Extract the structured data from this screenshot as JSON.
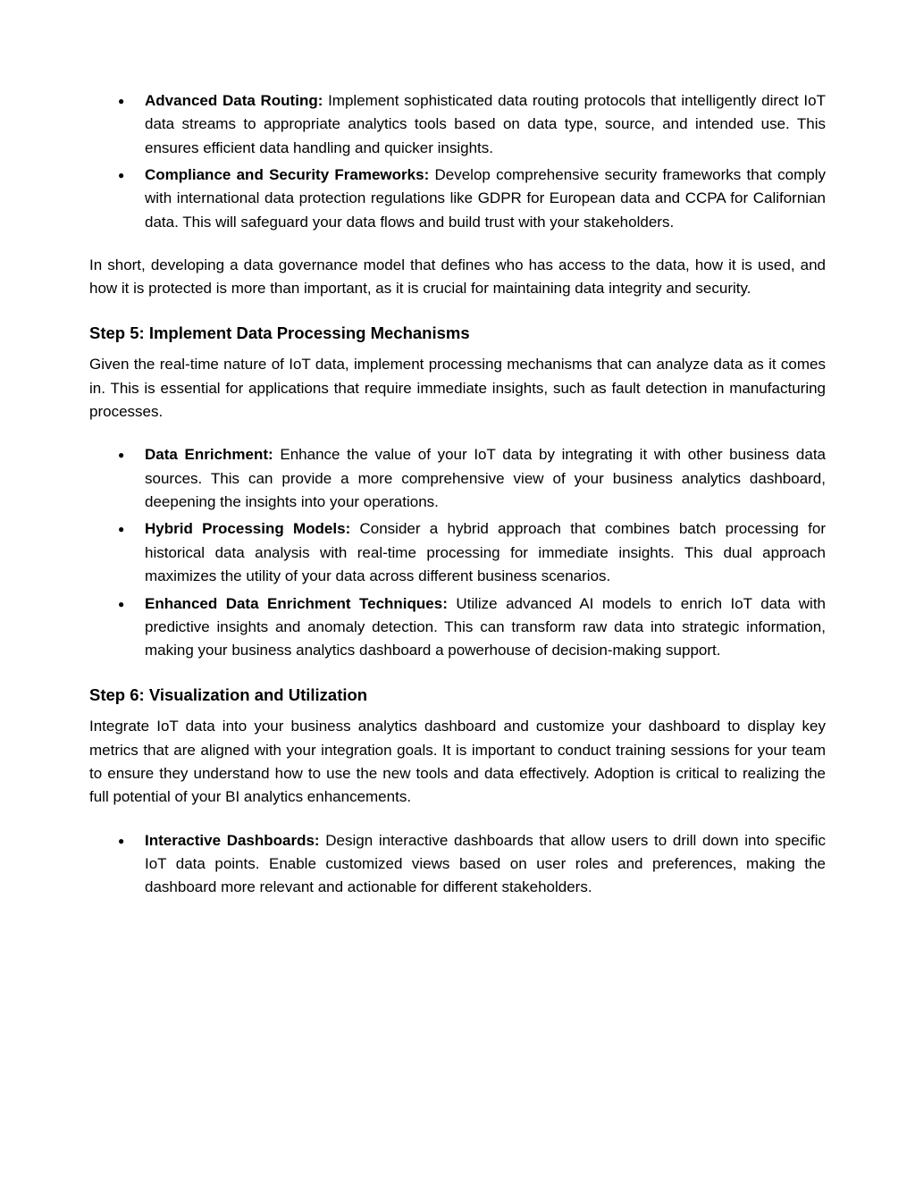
{
  "list1": {
    "items": [
      {
        "bold": "Advanced Data Routing:",
        "text": " Implement sophisticated data routing protocols that intelligently direct IoT data streams to appropriate analytics tools based on data type, source, and intended use. This ensures efficient data handling and quicker insights."
      },
      {
        "bold": "Compliance and Security Frameworks:",
        "text": " Develop comprehensive security frameworks that comply with international data protection regulations like GDPR for European data and CCPA for Californian data. This will safeguard your data flows and build trust with your stakeholders."
      }
    ]
  },
  "para1": "In short, developing a data governance model that defines who has access to the data, how it is used, and how it is protected is more than important, as it is crucial for maintaining data integrity and security.",
  "step5": {
    "heading": "Step 5: Implement Data Processing Mechanisms",
    "intro": "Given the real-time nature of IoT data, implement processing mechanisms that can analyze data as it comes in. This is essential for applications that require immediate insights, such as fault detection in manufacturing processes.",
    "items": [
      {
        "bold": "Data Enrichment:",
        "text": " Enhance the value of your IoT data by integrating it with other business data sources. This can provide a more comprehensive view of your business analytics dashboard, deepening the insights into your operations."
      },
      {
        "bold": "Hybrid Processing Models:",
        "text": " Consider a hybrid approach that combines batch processing for historical data analysis with real-time processing for immediate insights. This dual approach maximizes the utility of your data across different business scenarios."
      },
      {
        "bold": "Enhanced Data Enrichment Techniques:",
        "text": " Utilize advanced AI models to enrich IoT data with predictive insights and anomaly detection. This can transform raw data into strategic information, making your business analytics dashboard a powerhouse of decision-making support."
      }
    ]
  },
  "step6": {
    "heading": "Step 6: Visualization and Utilization",
    "intro": "Integrate IoT data into your business analytics dashboard and customize your dashboard to display key metrics that are aligned with your integration goals. It is important to conduct training sessions for your team to ensure they understand how to use the new tools and data effectively. Adoption is critical to realizing the full potential of your BI analytics enhancements.",
    "items": [
      {
        "bold": "Interactive Dashboards:",
        "text": " Design interactive dashboards that allow users to drill down into specific IoT data points. Enable customized views based on user roles and preferences, making the dashboard more relevant and actionable for different stakeholders."
      }
    ]
  }
}
